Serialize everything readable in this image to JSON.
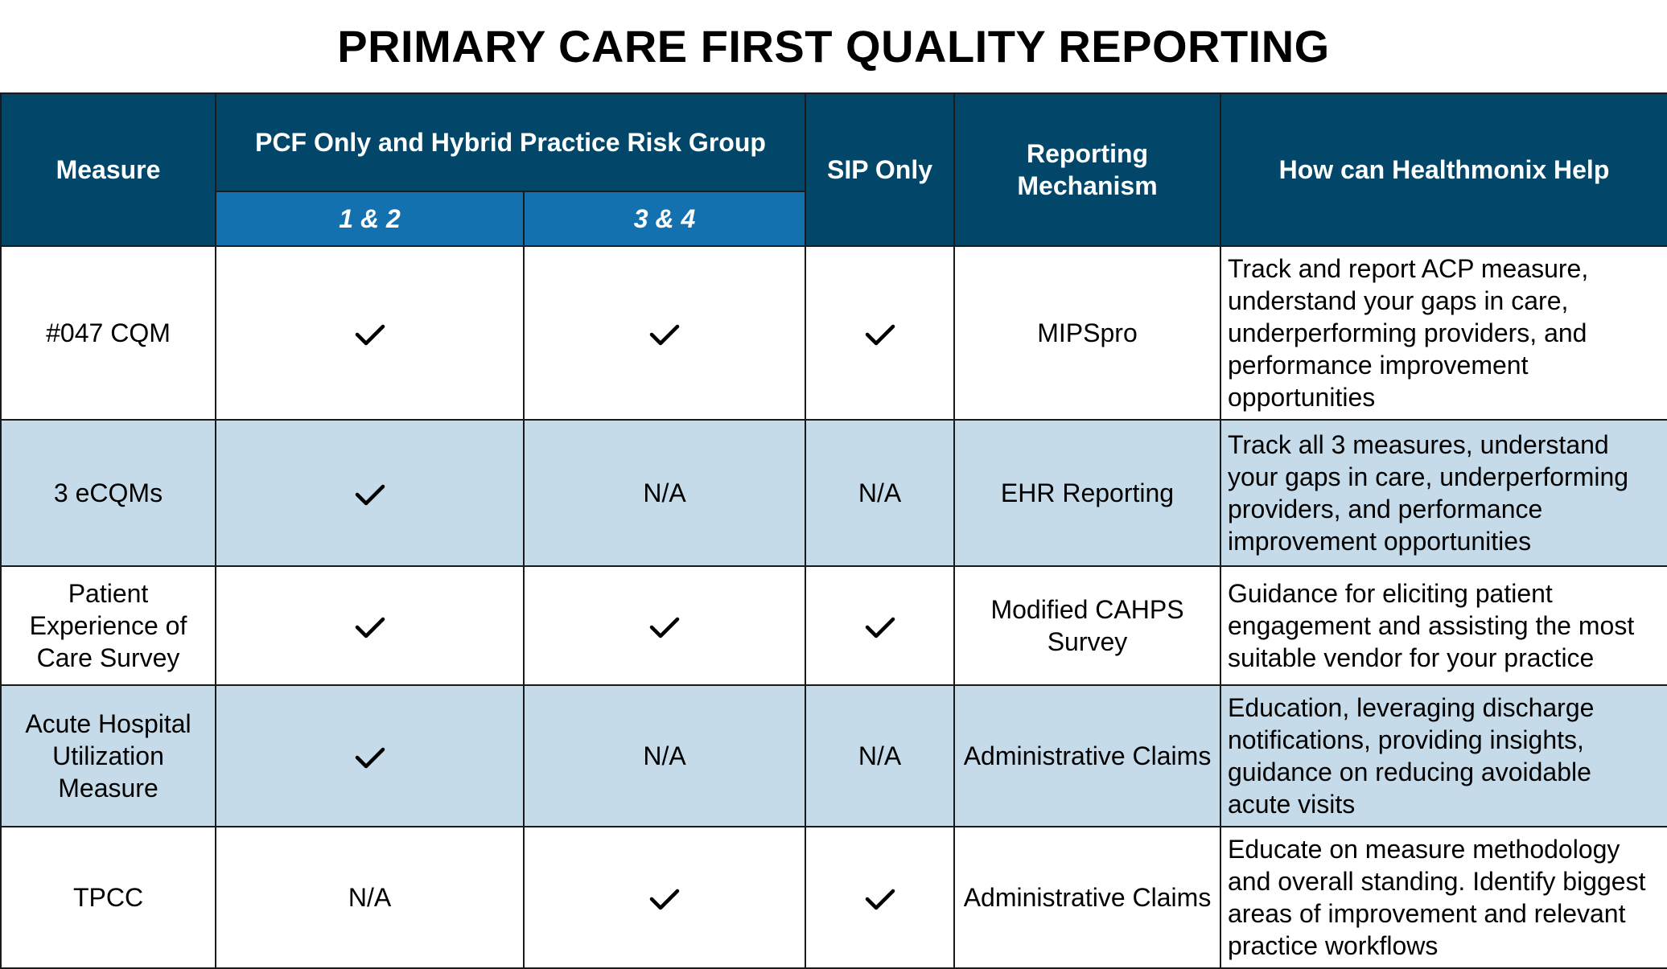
{
  "title": "PRIMARY CARE FIRST QUALITY REPORTING",
  "headers": {
    "measure": "Measure",
    "group": "PCF Only and Hybrid Practice Risk Group",
    "risk_1_2": "1 & 2",
    "risk_3_4": "3 & 4",
    "sip_only": "SIP Only",
    "reporting_mechanism": "Reporting Mechanism",
    "help": "How can Healthmonix Help"
  },
  "colors": {
    "header_bg": "#02476a",
    "subheader_bg": "#1471b0",
    "row_alt_bg": "#c5dbe9",
    "header_text": "#ffffff"
  },
  "rows": [
    {
      "measure": "#047 CQM",
      "risk_1_2": "check-icon",
      "risk_3_4": "check-icon",
      "sip_only": "check-icon",
      "mechanism": "MIPSpro",
      "help": "Track and report ACP measure, understand your gaps in care, underperforming providers, and performance improvement opportunities"
    },
    {
      "measure": "3 eCQMs",
      "risk_1_2": "check-icon",
      "risk_3_4": "N/A",
      "sip_only": "N/A",
      "mechanism": "EHR Reporting",
      "help": "Track all 3 measures, understand your gaps in care, underperforming providers, and performance improvement opportunities"
    },
    {
      "measure": "Patient Experience of Care Survey",
      "risk_1_2": "check-icon",
      "risk_3_4": "check-icon",
      "sip_only": "check-icon",
      "mechanism": "Modified CAHPS Survey",
      "help": "Guidance for eliciting patient engagement and assisting the most suitable vendor for your practice"
    },
    {
      "measure": "Acute Hospital Utilization Measure",
      "risk_1_2": "check-icon",
      "risk_3_4": "N/A",
      "sip_only": "N/A",
      "mechanism": "Administrative Claims",
      "help": "Education, leveraging discharge notifications, providing insights, guidance on reducing avoidable acute visits"
    },
    {
      "measure": "TPCC",
      "risk_1_2": "N/A",
      "risk_3_4": "check-icon",
      "sip_only": "check-icon",
      "mechanism": "Administrative Claims",
      "help": "Educate on measure methodology and overall standing. Identify biggest areas of improvement and relevant practice workflows"
    }
  ]
}
